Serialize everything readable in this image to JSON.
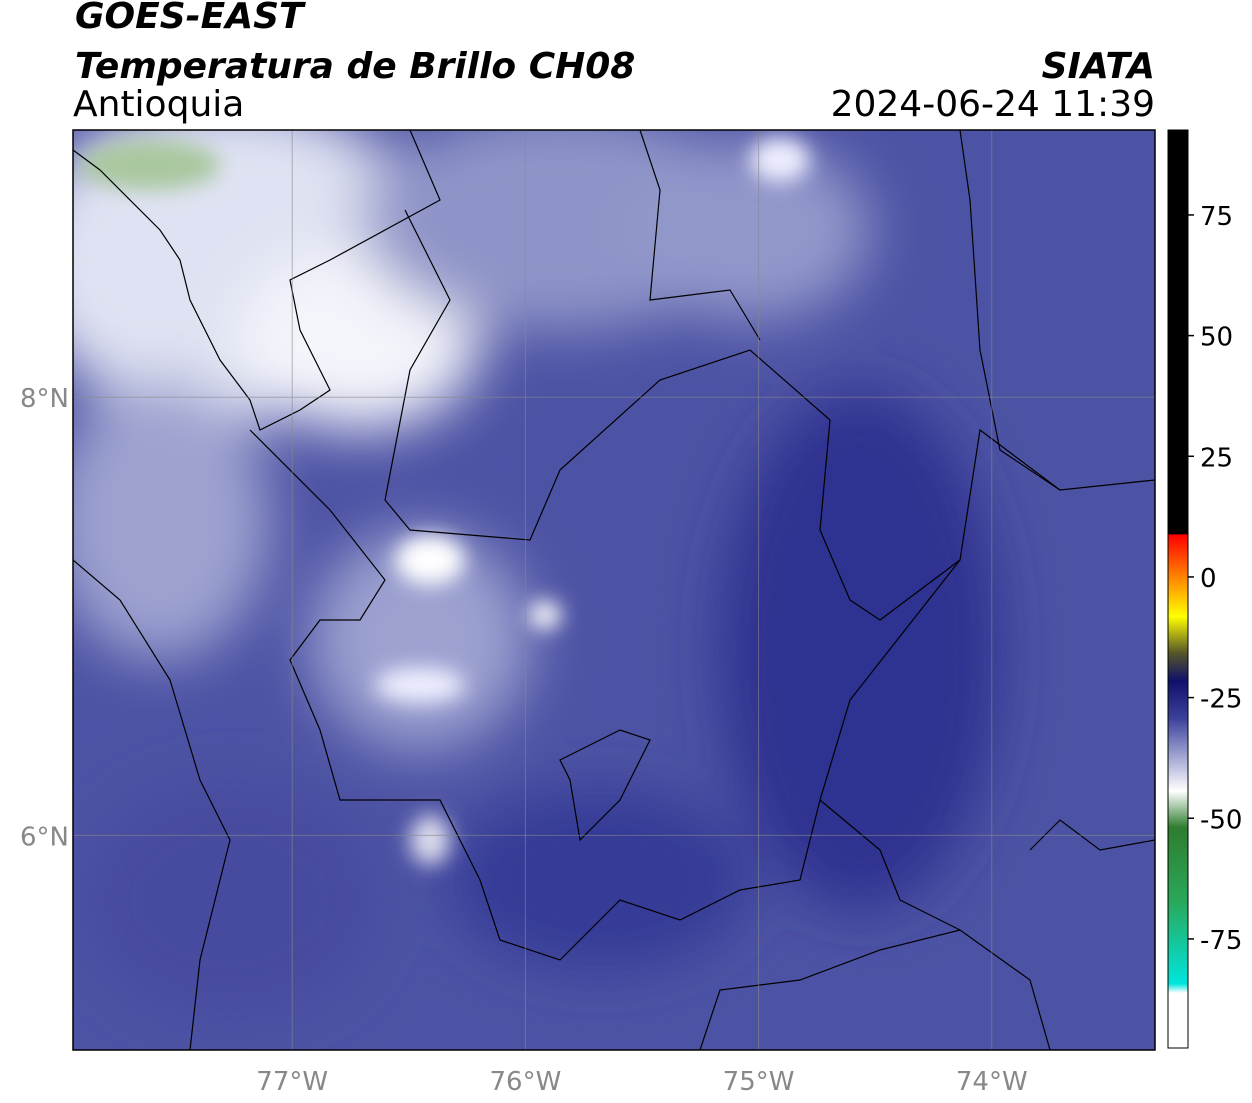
{
  "header": {
    "title": "GOES-EAST",
    "subtitle": "Temperatura de Brillo CH08",
    "region": "Antioquia",
    "source": "SIATA",
    "datetime": "2024-06-24 11:39"
  },
  "map": {
    "lon_range": [
      -77.94,
      -73.3
    ],
    "lat_range": [
      5.02,
      9.22
    ],
    "lon_ticks": [
      {
        "value": -77,
        "label": "77°W"
      },
      {
        "value": -76,
        "label": "76°W"
      },
      {
        "value": -75,
        "label": "75°W"
      },
      {
        "value": -74,
        "label": "74°W"
      }
    ],
    "lat_ticks": [
      {
        "value": 8,
        "label": "8°N"
      },
      {
        "value": 6,
        "label": "6°N"
      }
    ]
  },
  "colorbar": {
    "range": [
      -97.6,
      92.6
    ],
    "ticks": [
      75,
      50,
      25,
      0,
      -25,
      -50,
      -75
    ]
  }
}
